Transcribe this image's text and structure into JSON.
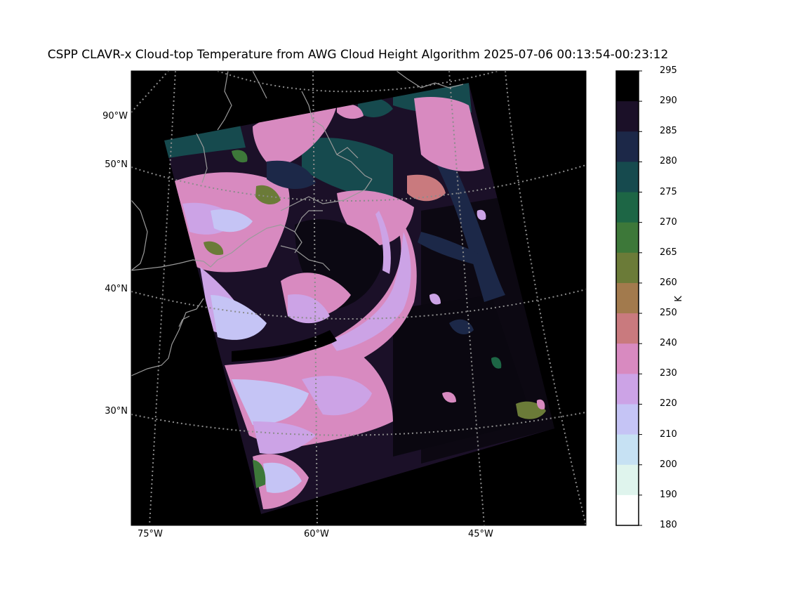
{
  "title": "CSPP CLAVR-x Cloud-top Temperature from AWG Cloud Height Algorithm 2025-07-06 00:13:54-00:23:12",
  "lat_labels": [
    "90°W",
    "50°N",
    "40°N",
    "30°N"
  ],
  "lon_labels": [
    "75°W",
    "60°W",
    "45°W"
  ],
  "colorbar": {
    "unit": "K",
    "ticks": [
      "295",
      "290",
      "285",
      "280",
      "275",
      "270",
      "265",
      "260",
      "250",
      "240",
      "230",
      "220",
      "210",
      "200",
      "190",
      "180"
    ],
    "colors": [
      "#000000",
      "#1b1028",
      "#1c2848",
      "#164a4e",
      "#1d6645",
      "#3d7839",
      "#6b7b38",
      "#a27a4d",
      "#c97a7e",
      "#d88ac0",
      "#cca3e6",
      "#c5c4f5",
      "#c6e1f3",
      "#dff4ed",
      "#ffffff"
    ]
  },
  "map": {
    "background_color": "#000000",
    "coastline_color": "#9a9a9a",
    "gridline_color": "#8c8c8c",
    "swath_colors": {
      "dark_purple": "#1b1028",
      "navy": "#1c2848",
      "teal": "#164a4e",
      "green": "#1d6645",
      "olive": "#6b7b38",
      "pink": "#d88ac0",
      "lavender": "#cca3e6",
      "light_blue": "#c5c4f5"
    }
  }
}
